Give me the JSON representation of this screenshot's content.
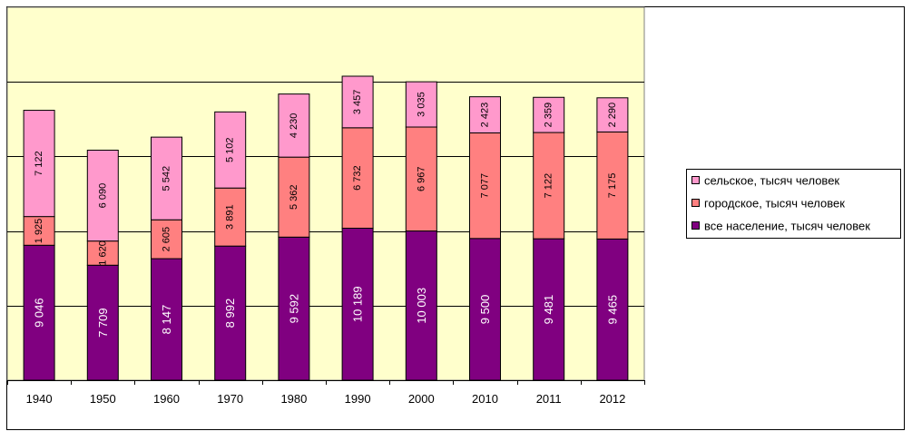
{
  "chart_data": {
    "type": "bar",
    "stacked": true,
    "categories": [
      "1940",
      "1950",
      "1960",
      "1970",
      "1980",
      "1990",
      "2000",
      "2010",
      "2011",
      "2012"
    ],
    "series": [
      {
        "name": "все население, тысяч человек",
        "color": "#800080",
        "values": [
          9046,
          7709,
          8147,
          8992,
          9592,
          10189,
          10003,
          9500,
          9481,
          9465
        ],
        "labels": [
          "9 046",
          "7 709",
          "8 147",
          "8 992",
          "9 592",
          "10 189",
          "10 003",
          "9 500",
          "9 481",
          "9 465"
        ]
      },
      {
        "name": "городское, тысяч человек",
        "color": "#FF8080",
        "values": [
          1925,
          1620,
          2605,
          3891,
          5362,
          6732,
          6967,
          7077,
          7122,
          7175
        ],
        "labels": [
          "1 925",
          "1 620",
          "2 605",
          "3 891",
          "5 362",
          "6 732",
          "6 967",
          "7 077",
          "7 122",
          "7 175"
        ]
      },
      {
        "name": "сельское, тысяч человек",
        "color": "#FF99CC",
        "values": [
          7122,
          6090,
          5542,
          5102,
          4230,
          3457,
          3035,
          2423,
          2359,
          2290
        ],
        "labels": [
          "7 122",
          "6 090",
          "5 542",
          "5 102",
          "4 230",
          "3 457",
          "3 035",
          "2 423",
          "2 359",
          "2 290"
        ]
      }
    ],
    "ylim": [
      0,
      25000
    ],
    "gridlines": [
      5000,
      10000,
      15000,
      20000,
      25000
    ],
    "grid": true,
    "plot_background": "#FFFFCC",
    "legend_position": "right",
    "legend_order": [
      2,
      1,
      0
    ]
  }
}
